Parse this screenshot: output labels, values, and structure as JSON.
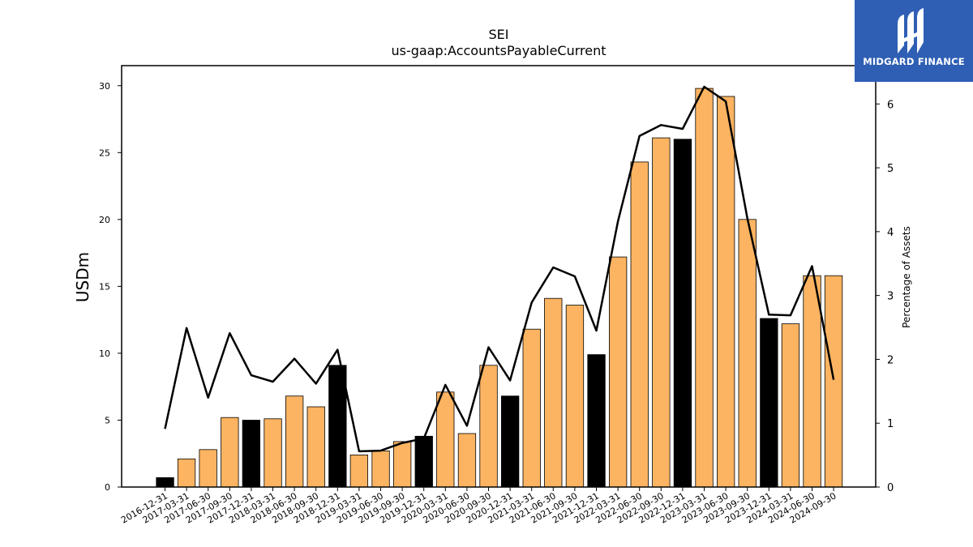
{
  "chart_data": {
    "type": "bar",
    "title": "SEI",
    "subtitle": "us-gaap:AccountsPayableCurrent",
    "ylabel": "USDm",
    "ylabel_right": "Percentage of Assets",
    "ylim": [
      0,
      31.5
    ],
    "ylim_right": [
      0,
      6.6
    ],
    "yticks": [
      0,
      5,
      10,
      15,
      20,
      25,
      30
    ],
    "yticks_right": [
      0,
      1,
      2,
      3,
      4,
      5,
      6
    ],
    "categories": [
      "2016-12-31",
      "2017-03-31",
      "2017-06-30",
      "2017-09-30",
      "2017-12-31",
      "2018-03-31",
      "2018-06-30",
      "2018-09-30",
      "2018-12-31",
      "2019-03-31",
      "2019-06-30",
      "2019-09-30",
      "2019-12-31",
      "2020-03-31",
      "2020-06-30",
      "2020-09-30",
      "2020-12-31",
      "2021-03-31",
      "2021-06-30",
      "2021-09-30",
      "2021-12-31",
      "2022-03-31",
      "2022-06-30",
      "2022-09-30",
      "2022-12-31",
      "2023-03-31",
      "2023-06-30",
      "2023-09-30",
      "2023-12-31",
      "2024-03-31",
      "2024-06-30",
      "2024-09-30"
    ],
    "series": [
      {
        "type": "bar",
        "values": [
          0.7,
          2.1,
          2.8,
          5.2,
          5.0,
          5.1,
          6.8,
          6.0,
          9.1,
          2.4,
          2.7,
          3.4,
          3.8,
          7.1,
          4.0,
          9.1,
          6.8,
          11.8,
          14.1,
          13.6,
          9.9,
          17.2,
          24.3,
          26.1,
          26.0,
          29.8,
          29.2,
          20.0,
          12.6,
          12.2,
          15.8,
          15.8
        ],
        "fiscal_year_end": [
          true,
          false,
          false,
          false,
          true,
          false,
          false,
          false,
          true,
          false,
          false,
          false,
          true,
          false,
          false,
          false,
          true,
          false,
          false,
          false,
          true,
          false,
          false,
          false,
          true,
          false,
          false,
          false,
          true,
          false,
          false,
          false
        ]
      },
      {
        "type": "line",
        "axis": "right",
        "values": [
          0.91,
          2.49,
          1.4,
          2.41,
          1.75,
          1.65,
          2.01,
          1.62,
          2.15,
          0.56,
          0.57,
          0.69,
          0.76,
          1.6,
          0.96,
          2.19,
          1.67,
          2.89,
          3.44,
          3.3,
          2.45,
          4.16,
          5.5,
          5.67,
          5.61,
          6.27,
          6.04,
          4.21,
          2.7,
          2.69,
          3.46,
          1.68
        ]
      }
    ],
    "colors": {
      "bar_quarter": "#fdb462",
      "bar_year_end": "#000000",
      "line": "#000000",
      "edge": "#000000"
    }
  },
  "logo": {
    "text": "MIDGARD FINANCE",
    "icon": "midgard-logo-icon",
    "background": "#2f5fb4"
  }
}
